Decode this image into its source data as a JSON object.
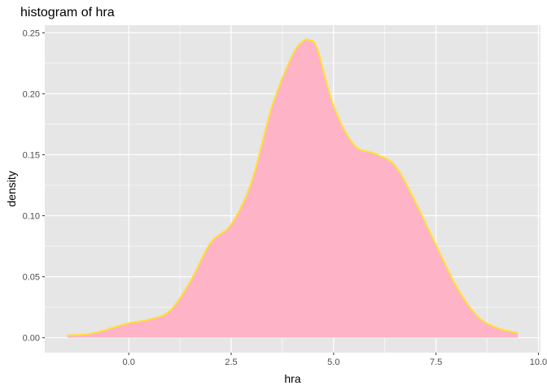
{
  "chart_data": {
    "type": "area",
    "title": "histogram of hra",
    "xlabel": "hra",
    "ylabel": "density",
    "xlim": [
      -2.05,
      10.05
    ],
    "ylim": [
      -0.0122,
      0.2562
    ],
    "x_ticks": [
      0.0,
      2.5,
      5.0,
      7.5,
      10.0
    ],
    "x_tick_labels": [
      "0.0",
      "2.5",
      "5.0",
      "7.5",
      "10.0"
    ],
    "x_minor_ticks": [
      1.25,
      3.75,
      6.25,
      8.75
    ],
    "y_ticks": [
      0.0,
      0.05,
      0.1,
      0.15,
      0.2,
      0.25
    ],
    "y_tick_labels": [
      "0.00",
      "0.05",
      "0.10",
      "0.15",
      "0.20",
      "0.25"
    ],
    "y_minor_ticks": [
      0.025,
      0.075,
      0.125,
      0.175,
      0.225
    ],
    "grid": true,
    "legend": "none",
    "fill_color": "#ffb3c6",
    "line_color": "#ffe033",
    "panel_color": "#e6e6e6",
    "grid_color": "#ffffff",
    "series": [
      {
        "x": [
          -1.5,
          -1.0,
          -0.5,
          0.0,
          0.5,
          1.0,
          1.5,
          2.0,
          2.5,
          3.0,
          3.5,
          4.0,
          4.25,
          4.4,
          4.6,
          5.0,
          5.5,
          6.0,
          6.5,
          7.0,
          7.5,
          8.0,
          8.5,
          9.0,
          9.5
        ],
        "y": [
          0.002,
          0.003,
          0.007,
          0.012,
          0.015,
          0.022,
          0.046,
          0.078,
          0.093,
          0.128,
          0.19,
          0.232,
          0.243,
          0.244,
          0.237,
          0.19,
          0.158,
          0.151,
          0.141,
          0.111,
          0.076,
          0.042,
          0.018,
          0.008,
          0.004
        ]
      }
    ]
  }
}
